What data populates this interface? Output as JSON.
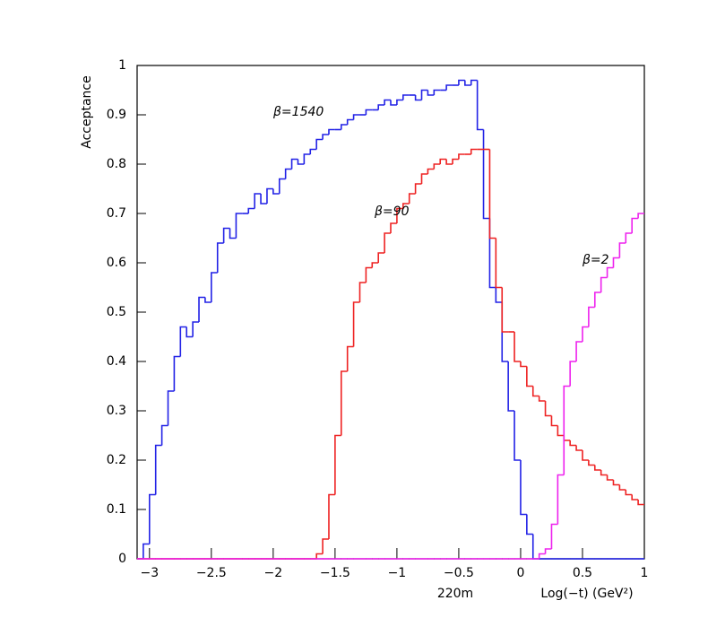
{
  "chart_data": {
    "type": "histogram",
    "y_label": "Acceptance",
    "x_labels": [
      "220m",
      "Log(−t) (GeV²)"
    ],
    "bins": [
      -3.1,
      -3.05,
      -3,
      -2.95,
      -2.9,
      -2.85,
      -2.8,
      -2.75,
      -2.7,
      -2.65,
      -2.6,
      -2.55,
      -2.5,
      -2.45,
      -2.4,
      -2.35,
      -2.3,
      -2.25,
      -2.2,
      -2.15,
      -2.1,
      -2.05,
      -2,
      -1.95,
      -1.9,
      -1.85,
      -1.8,
      -1.75,
      -1.7,
      -1.65,
      -1.6,
      -1.55,
      -1.5,
      -1.45,
      -1.4,
      -1.35,
      -1.3,
      -1.25,
      -1.2,
      -1.15,
      -1.1,
      -1.05,
      -1,
      -0.95,
      -0.9,
      -0.85,
      -0.8,
      -0.75,
      -0.7,
      -0.65,
      -0.6,
      -0.55,
      -0.5,
      -0.45,
      -0.4,
      -0.35,
      -0.3,
      -0.25,
      -0.2,
      -0.15,
      -0.1,
      -0.05,
      0,
      0.05,
      0.1,
      0.15,
      0.2,
      0.25,
      0.3,
      0.35,
      0.4,
      0.45,
      0.5,
      0.55,
      0.6,
      0.65,
      0.7,
      0.75,
      0.8,
      0.85,
      0.9,
      0.95,
      1
    ],
    "series": [
      {
        "name": "β=1540",
        "color": "#2222e6",
        "values": [
          0,
          0.03,
          0.13,
          0.23,
          0.27,
          0.34,
          0.41,
          0.47,
          0.45,
          0.48,
          0.53,
          0.52,
          0.58,
          0.64,
          0.67,
          0.65,
          0.7,
          0.7,
          0.71,
          0.74,
          0.72,
          0.75,
          0.74,
          0.77,
          0.79,
          0.81,
          0.8,
          0.82,
          0.83,
          0.85,
          0.86,
          0.87,
          0.87,
          0.88,
          0.89,
          0.9,
          0.9,
          0.91,
          0.91,
          0.92,
          0.93,
          0.92,
          0.93,
          0.94,
          0.94,
          0.93,
          0.95,
          0.94,
          0.95,
          0.95,
          0.96,
          0.96,
          0.97,
          0.96,
          0.97,
          0.87,
          0.69,
          0.55,
          0.52,
          0.4,
          0.3,
          0.2,
          0.09,
          0.05,
          0,
          0,
          0,
          0,
          0,
          0,
          0,
          0,
          0,
          0,
          0,
          0,
          0,
          0,
          0,
          0,
          0,
          0
        ]
      },
      {
        "name": "β=90",
        "color": "#ee2222",
        "values": [
          0,
          0,
          0,
          0,
          0,
          0,
          0,
          0,
          0,
          0,
          0,
          0,
          0,
          0,
          0,
          0,
          0,
          0,
          0,
          0,
          0,
          0,
          0,
          0,
          0,
          0,
          0,
          0,
          0,
          0.01,
          0.04,
          0.13,
          0.25,
          0.38,
          0.43,
          0.52,
          0.56,
          0.59,
          0.6,
          0.62,
          0.66,
          0.68,
          0.71,
          0.72,
          0.74,
          0.76,
          0.78,
          0.79,
          0.8,
          0.81,
          0.8,
          0.81,
          0.82,
          0.82,
          0.83,
          0.83,
          0.83,
          0.65,
          0.55,
          0.46,
          0.46,
          0.4,
          0.39,
          0.35,
          0.33,
          0.32,
          0.29,
          0.27,
          0.25,
          0.24,
          0.23,
          0.22,
          0.2,
          0.19,
          0.18,
          0.17,
          0.16,
          0.15,
          0.14,
          0.13,
          0.12,
          0.11
        ]
      },
      {
        "name": "β=2",
        "color": "#ee22ee",
        "values": [
          0,
          0,
          0,
          0,
          0,
          0,
          0,
          0,
          0,
          0,
          0,
          0,
          0,
          0,
          0,
          0,
          0,
          0,
          0,
          0,
          0,
          0,
          0,
          0,
          0,
          0,
          0,
          0,
          0,
          0,
          0,
          0,
          0,
          0,
          0,
          0,
          0,
          0,
          0,
          0,
          0,
          0,
          0,
          0,
          0,
          0,
          0,
          0,
          0,
          0,
          0,
          0,
          0,
          0,
          0,
          0,
          0,
          0,
          0,
          0,
          0,
          0,
          0,
          0,
          0,
          0.01,
          0.02,
          0.07,
          0.17,
          0.35,
          0.4,
          0.44,
          0.47,
          0.51,
          0.54,
          0.57,
          0.59,
          0.61,
          0.64,
          0.66,
          0.69,
          0.7
        ]
      }
    ],
    "xlim": [
      -3.1,
      1
    ],
    "ylim": [
      0,
      1
    ],
    "xticks": [
      {
        "value": -3,
        "label": "−3"
      },
      {
        "value": -2.5,
        "label": "−2.5"
      },
      {
        "value": -2,
        "label": "−2"
      },
      {
        "value": -1.5,
        "label": "−1.5"
      },
      {
        "value": -1,
        "label": "−1"
      },
      {
        "value": -0.5,
        "label": "−0.5"
      },
      0,
      0.5,
      1
    ],
    "yticks": [
      0,
      0.1,
      0.2,
      0.3,
      0.4,
      0.5,
      0.6,
      0.7,
      0.8,
      0.9,
      1
    ]
  }
}
